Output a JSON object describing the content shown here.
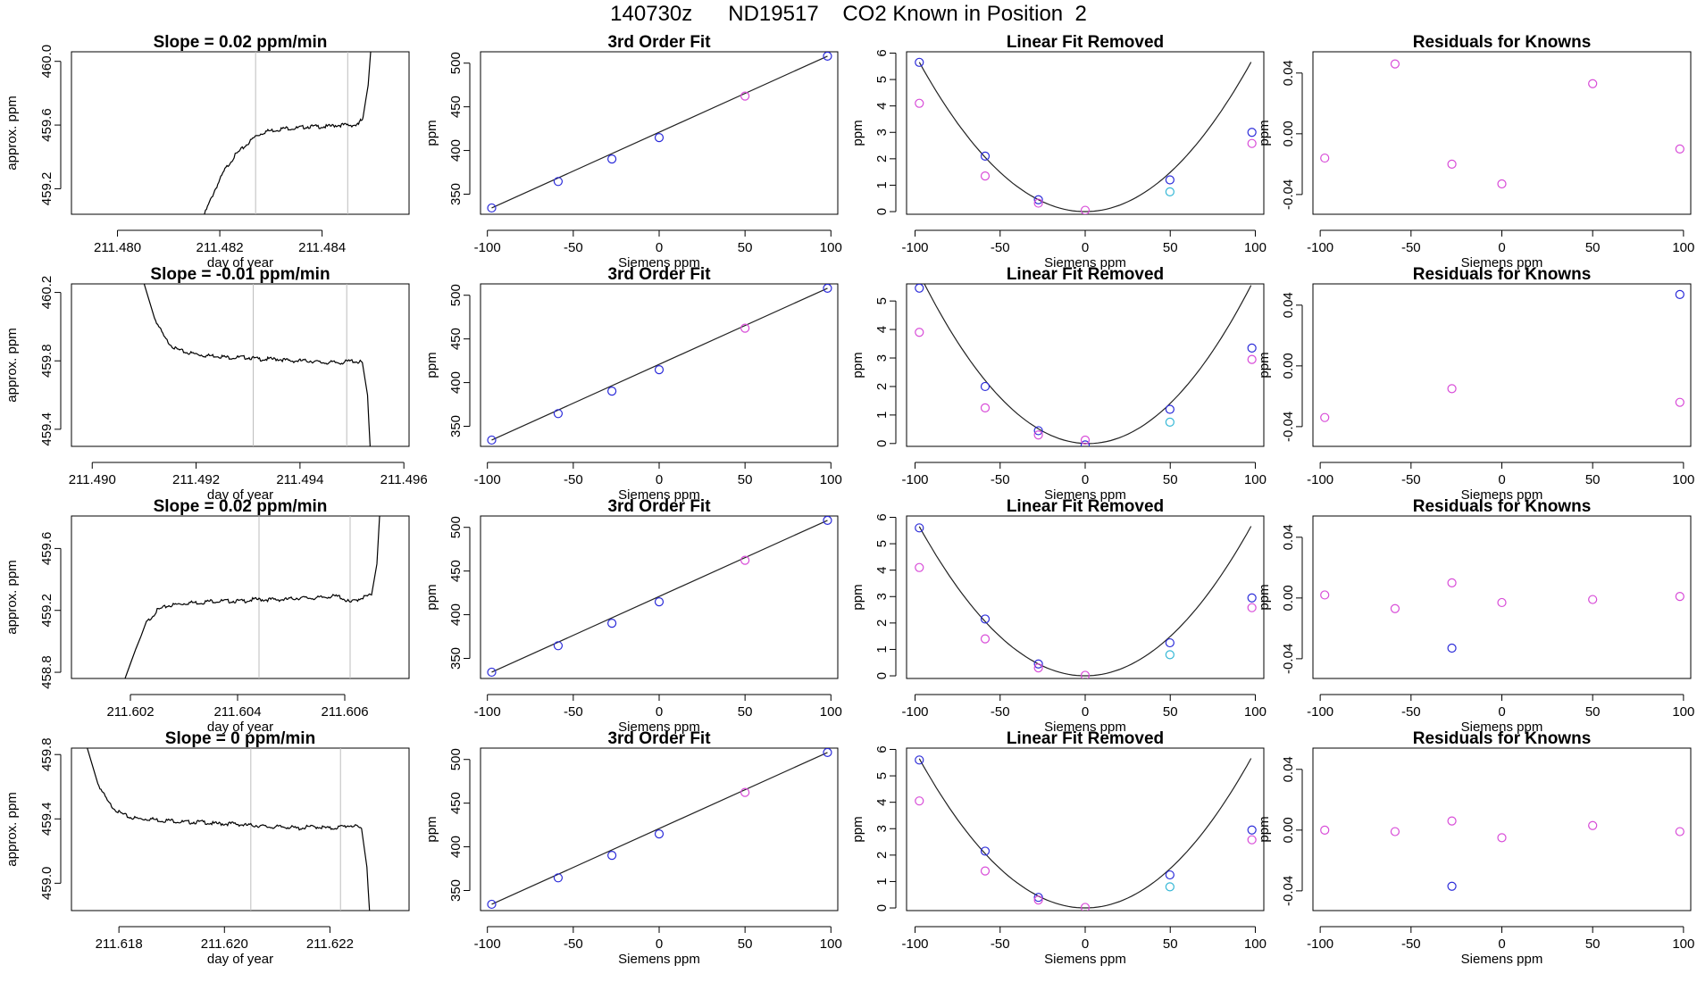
{
  "title": "140730z      ND19517    CO2 Known in Position  2",
  "colors": {
    "trace": "#000000",
    "window_lines": "#bdbdbd",
    "fit_line": "#222222",
    "blue_points": "#2b2bd9",
    "magenta_points": "#d84cd8",
    "cyan_points": "#36b8d6"
  },
  "chart_data": [
    {
      "type": "line",
      "panel": "trace-1",
      "title": "Slope =  0.02  ppm/min",
      "xlabel": "day of year",
      "ylabel": "approx. ppm",
      "xlim": [
        211.4791,
        211.4857
      ],
      "ylim": [
        459.04,
        460.06
      ],
      "xticks": [
        211.48,
        211.482,
        211.484
      ],
      "xtick_labels": [
        "211.480",
        "211.482",
        "211.484"
      ],
      "yticks": [
        459.2,
        459.6,
        460.0
      ],
      "ytick_labels": [
        "459.2",
        "459.6",
        "460.0"
      ],
      "window": [
        211.4827,
        211.4845
      ],
      "x": [
        211.4817,
        211.4819,
        211.4821,
        211.4823,
        211.4825,
        211.4827,
        211.4829,
        211.4831,
        211.4833,
        211.4835,
        211.4837,
        211.4839,
        211.4841,
        211.4843,
        211.4845,
        211.4847,
        211.4848,
        211.4849,
        211.48495
      ],
      "y": [
        459.04,
        459.19,
        459.32,
        459.41,
        459.47,
        459.53,
        459.56,
        459.57,
        459.58,
        459.58,
        459.59,
        459.59,
        459.59,
        459.6,
        459.6,
        459.6,
        459.65,
        459.85,
        460.06
      ]
    },
    {
      "type": "scatter",
      "panel": "fit-1",
      "title": "3rd Order Fit",
      "xlabel": "Siemens ppm",
      "ylabel": "ppm",
      "xlim": [
        -104,
        104
      ],
      "ylim": [
        327,
        513
      ],
      "xticks": [
        -100,
        -50,
        0,
        50,
        100
      ],
      "yticks": [
        350,
        400,
        450,
        500
      ],
      "series": [
        {
          "color": "blue",
          "x": [
            -97.5,
            -58.8,
            -27.5,
            0,
            98
          ],
          "y": [
            334.2,
            364.5,
            390.2,
            414.8,
            508
          ]
        },
        {
          "color": "magenta",
          "x": [
            50
          ],
          "y": [
            462.3
          ]
        }
      ],
      "fit_line": {
        "x": [
          -97.5,
          98
        ],
        "y": [
          334.2,
          508
        ]
      }
    },
    {
      "type": "scatter",
      "panel": "linear-removed-1",
      "title": "Linear Fit Removed",
      "xlabel": "Siemens ppm",
      "ylabel": "ppm",
      "xlim": [
        -105,
        105
      ],
      "ylim": [
        -0.1,
        6.05
      ],
      "xticks": [
        -100,
        -50,
        0,
        50,
        100
      ],
      "yticks": [
        0,
        1,
        2,
        3,
        4,
        5,
        6
      ],
      "series": [
        {
          "color": "blue",
          "x": [
            -97.5,
            -58.8,
            -27.5,
            49.8,
            98
          ],
          "y": [
            5.65,
            2.1,
            0.45,
            1.2,
            3.0
          ]
        },
        {
          "color": "magenta",
          "x": [
            -97.5,
            -58.8,
            -27.5,
            0,
            98
          ],
          "y": [
            4.1,
            1.35,
            0.32,
            0.05,
            2.58
          ]
        },
        {
          "color": "cyan",
          "x": [
            49.8
          ],
          "y": [
            0.75
          ]
        }
      ],
      "fit_curve": {
        "a": 0.000595,
        "b": 2.5e-05,
        "c": 0
      }
    },
    {
      "type": "scatter",
      "panel": "residuals-1",
      "title": "Residuals for Knowns",
      "xlabel": "Siemens ppm",
      "ylabel": "ppm",
      "xlim": [
        -104,
        104
      ],
      "ylim": [
        -0.053,
        0.054
      ],
      "xticks": [
        -100,
        -50,
        0,
        50,
        100
      ],
      "yticks": [
        -0.04,
        0.0,
        0.04
      ],
      "ytick_labels": [
        "-0.04",
        "0.00",
        "0.04"
      ],
      "series": [
        {
          "color": "magenta",
          "x": [
            -97.5,
            -58.8,
            -27.5,
            0,
            50,
            98
          ],
          "y": [
            -0.016,
            0.046,
            -0.02,
            -0.033,
            0.033,
            -0.01
          ]
        }
      ]
    },
    {
      "type": "line",
      "panel": "trace-2",
      "title": "Slope =  -0.01  ppm/min",
      "xlabel": "day of year",
      "ylabel": "approx. ppm",
      "xlim": [
        211.4896,
        211.4961
      ],
      "ylim": [
        459.3,
        460.25
      ],
      "xticks": [
        211.49,
        211.492,
        211.494,
        211.496
      ],
      "xtick_labels": [
        "211.490",
        "211.492",
        "211.494",
        "211.496"
      ],
      "yticks": [
        459.4,
        459.8,
        460.2
      ],
      "ytick_labels": [
        "459.4",
        "459.8",
        "460.2"
      ],
      "window": [
        211.4931,
        211.4949
      ],
      "x": [
        211.491,
        211.4912,
        211.4914,
        211.4916,
        211.4918,
        211.492,
        211.4922,
        211.4924,
        211.4926,
        211.4928,
        211.493,
        211.4932,
        211.4934,
        211.4936,
        211.4938,
        211.494,
        211.4942,
        211.4944,
        211.4946,
        211.4948,
        211.495,
        211.4952,
        211.4953,
        211.49535
      ],
      "y": [
        460.25,
        460.05,
        459.93,
        459.87,
        459.85,
        459.84,
        459.83,
        459.83,
        459.82,
        459.82,
        459.82,
        459.81,
        459.81,
        459.81,
        459.8,
        459.8,
        459.8,
        459.79,
        459.79,
        459.79,
        459.8,
        459.79,
        459.6,
        459.3
      ]
    },
    {
      "type": "scatter",
      "panel": "fit-2",
      "title": "3rd Order Fit",
      "xlabel": "Siemens ppm",
      "ylabel": "ppm",
      "xlim": [
        -104,
        104
      ],
      "ylim": [
        327,
        513
      ],
      "xticks": [
        -100,
        -50,
        0,
        50,
        100
      ],
      "yticks": [
        350,
        400,
        450,
        500
      ],
      "series": [
        {
          "color": "blue",
          "x": [
            -97.5,
            -58.8,
            -27.5,
            0,
            98
          ],
          "y": [
            334.2,
            364.5,
            390.2,
            414.8,
            508
          ]
        },
        {
          "color": "magenta",
          "x": [
            50
          ],
          "y": [
            462.3
          ]
        }
      ],
      "fit_line": {
        "x": [
          -97.5,
          98
        ],
        "y": [
          334.2,
          508
        ]
      }
    },
    {
      "type": "scatter",
      "panel": "linear-removed-2",
      "title": "Linear Fit Removed",
      "xlabel": "Siemens ppm",
      "ylabel": "ppm",
      "xlim": [
        -105,
        105
      ],
      "ylim": [
        -0.1,
        5.6
      ],
      "xticks": [
        -100,
        -50,
        0,
        50,
        100
      ],
      "yticks": [
        0,
        1,
        2,
        3,
        4,
        5
      ],
      "series": [
        {
          "color": "blue",
          "x": [
            -97.5,
            -58.8,
            -27.5,
            0,
            49.8,
            98
          ],
          "y": [
            5.45,
            2.0,
            0.45,
            -0.05,
            1.2,
            3.35
          ]
        },
        {
          "color": "magenta",
          "x": [
            -97.5,
            -58.8,
            -27.5,
            0,
            98
          ],
          "y": [
            3.9,
            1.25,
            0.3,
            0.12,
            2.95
          ]
        },
        {
          "color": "cyan",
          "x": [
            49.8
          ],
          "y": [
            0.75
          ]
        }
      ],
      "fit_curve": {
        "a": 0.000605,
        "b": -0.00207,
        "c": 0
      }
    },
    {
      "type": "scatter",
      "panel": "residuals-2",
      "title": "Residuals for Knowns",
      "xlabel": "Siemens ppm",
      "ylabel": "ppm",
      "xlim": [
        -104,
        104
      ],
      "ylim": [
        -0.053,
        0.054
      ],
      "xticks": [
        -100,
        -50,
        0,
        50,
        100
      ],
      "yticks": [
        -0.04,
        0.0,
        0.04
      ],
      "ytick_labels": [
        "-0.04",
        "0.00",
        "0.04"
      ],
      "series": [
        {
          "color": "magenta",
          "x": [
            -97.5,
            -27.5,
            98
          ],
          "y": [
            -0.034,
            -0.015,
            -0.024
          ]
        },
        {
          "color": "blue",
          "x": [
            98
          ],
          "y": [
            0.047
          ]
        }
      ]
    },
    {
      "type": "line",
      "panel": "trace-3",
      "title": "Slope =  0.02  ppm/min",
      "xlabel": "day of year",
      "ylabel": "approx. ppm",
      "xlim": [
        211.6009,
        211.6072
      ],
      "ylim": [
        458.76,
        459.81
      ],
      "xticks": [
        211.602,
        211.604,
        211.606
      ],
      "xtick_labels": [
        "211.602",
        "211.604",
        "211.606"
      ],
      "yticks": [
        458.8,
        459.2,
        459.6
      ],
      "ytick_labels": [
        "458.8",
        "459.2",
        "459.6"
      ],
      "window": [
        211.6044,
        211.6061
      ],
      "x": [
        211.6019,
        211.6021,
        211.6023,
        211.6025,
        211.6027,
        211.6029,
        211.6031,
        211.6033,
        211.6035,
        211.6037,
        211.6039,
        211.6041,
        211.6043,
        211.6045,
        211.6047,
        211.6049,
        211.6051,
        211.6053,
        211.6055,
        211.6057,
        211.6059,
        211.6061,
        211.6063,
        211.6065,
        211.6066,
        211.60665
      ],
      "y": [
        458.76,
        458.95,
        459.12,
        459.2,
        459.23,
        459.24,
        459.25,
        459.25,
        459.26,
        459.26,
        459.26,
        459.26,
        459.27,
        459.27,
        459.27,
        459.27,
        459.28,
        459.28,
        459.28,
        459.29,
        459.29,
        459.25,
        459.28,
        459.3,
        459.5,
        459.81
      ]
    },
    {
      "type": "scatter",
      "panel": "fit-3",
      "title": "3rd Order Fit",
      "xlabel": "Siemens ppm",
      "ylabel": "ppm",
      "xlim": [
        -104,
        104
      ],
      "ylim": [
        327,
        513
      ],
      "xticks": [
        -100,
        -50,
        0,
        50,
        100
      ],
      "yticks": [
        350,
        400,
        450,
        500
      ],
      "series": [
        {
          "color": "blue",
          "x": [
            -97.5,
            -58.8,
            -27.5,
            0,
            98
          ],
          "y": [
            334.2,
            364.5,
            390.2,
            414.8,
            508
          ]
        },
        {
          "color": "magenta",
          "x": [
            50
          ],
          "y": [
            462.3
          ]
        }
      ],
      "fit_line": {
        "x": [
          -97.5,
          98
        ],
        "y": [
          334.2,
          508
        ]
      }
    },
    {
      "type": "scatter",
      "panel": "linear-removed-3",
      "title": "Linear Fit Removed",
      "xlabel": "Siemens ppm",
      "ylabel": "ppm",
      "xlim": [
        -105,
        105
      ],
      "ylim": [
        -0.1,
        6.05
      ],
      "xticks": [
        -100,
        -50,
        0,
        50,
        100
      ],
      "yticks": [
        0,
        1,
        2,
        3,
        4,
        5,
        6
      ],
      "series": [
        {
          "color": "blue",
          "x": [
            -97.5,
            -58.8,
            -27.5,
            49.8,
            98
          ],
          "y": [
            5.6,
            2.15,
            0.45,
            1.25,
            2.95
          ]
        },
        {
          "color": "magenta",
          "x": [
            -97.5,
            -58.8,
            -27.5,
            0,
            98
          ],
          "y": [
            4.1,
            1.4,
            0.3,
            0.02,
            2.58
          ]
        },
        {
          "color": "cyan",
          "x": [
            49.8
          ],
          "y": [
            0.8
          ]
        }
      ],
      "fit_curve": {
        "a": 0.000595,
        "b": 5e-05,
        "c": 0
      }
    },
    {
      "type": "scatter",
      "panel": "residuals-3",
      "title": "Residuals for Knowns",
      "xlabel": "Siemens ppm",
      "ylabel": "ppm",
      "xlim": [
        -104,
        104
      ],
      "ylim": [
        -0.053,
        0.054
      ],
      "xticks": [
        -100,
        -50,
        0,
        50,
        100
      ],
      "yticks": [
        -0.04,
        0.0,
        0.04
      ],
      "ytick_labels": [
        "-0.04",
        "0.00",
        "0.04"
      ],
      "series": [
        {
          "color": "magenta",
          "x": [
            -97.5,
            -58.8,
            -27.5,
            0,
            50,
            98
          ],
          "y": [
            0.002,
            -0.007,
            0.01,
            -0.003,
            -0.001,
            0.001
          ]
        },
        {
          "color": "blue",
          "x": [
            -27.5
          ],
          "y": [
            -0.033
          ]
        }
      ]
    },
    {
      "type": "line",
      "panel": "trace-4",
      "title": "Slope =  0  ppm/min",
      "xlabel": "day of year",
      "ylabel": "approx. ppm",
      "xlim": [
        211.6171,
        211.6235
      ],
      "ylim": [
        458.83,
        459.84
      ],
      "xticks": [
        211.618,
        211.62,
        211.622
      ],
      "xtick_labels": [
        "211.618",
        "211.620",
        "211.622"
      ],
      "yticks": [
        459.0,
        459.4,
        459.8
      ],
      "ytick_labels": [
        "459.0",
        "459.4",
        "459.8"
      ],
      "window": [
        211.6205,
        211.6222
      ],
      "x": [
        211.6174,
        211.6176,
        211.6178,
        211.618,
        211.6182,
        211.6184,
        211.6186,
        211.6188,
        211.619,
        211.6192,
        211.6194,
        211.6196,
        211.6198,
        211.62,
        211.6202,
        211.6204,
        211.6206,
        211.6208,
        211.621,
        211.6212,
        211.6214,
        211.6216,
        211.6218,
        211.622,
        211.6222,
        211.6224,
        211.6226,
        211.6227,
        211.62275
      ],
      "y": [
        459.84,
        459.62,
        459.5,
        459.44,
        459.41,
        459.4,
        459.4,
        459.39,
        459.39,
        459.38,
        459.38,
        459.38,
        459.37,
        459.37,
        459.37,
        459.36,
        459.36,
        459.35,
        459.35,
        459.35,
        459.34,
        459.35,
        459.35,
        459.34,
        459.35,
        459.36,
        459.34,
        459.1,
        458.83
      ]
    },
    {
      "type": "scatter",
      "panel": "fit-4",
      "title": "3rd Order Fit",
      "xlabel": "Siemens ppm",
      "ylabel": "ppm",
      "xlim": [
        -104,
        104
      ],
      "ylim": [
        327,
        513
      ],
      "xticks": [
        -100,
        -50,
        0,
        50,
        100
      ],
      "yticks": [
        350,
        400,
        450,
        500
      ],
      "series": [
        {
          "color": "blue",
          "x": [
            -97.5,
            -58.8,
            -27.5,
            0,
            98
          ],
          "y": [
            334.2,
            364.5,
            390.2,
            414.8,
            508
          ]
        },
        {
          "color": "magenta",
          "x": [
            50
          ],
          "y": [
            462.3
          ]
        }
      ],
      "fit_line": {
        "x": [
          -97.5,
          98
        ],
        "y": [
          334.2,
          508
        ]
      }
    },
    {
      "type": "scatter",
      "panel": "linear-removed-4",
      "title": "Linear Fit Removed",
      "xlabel": "Siemens ppm",
      "ylabel": "ppm",
      "xlim": [
        -105,
        105
      ],
      "ylim": [
        -0.1,
        6.05
      ],
      "xticks": [
        -100,
        -50,
        0,
        50,
        100
      ],
      "yticks": [
        0,
        1,
        2,
        3,
        4,
        5,
        6
      ],
      "series": [
        {
          "color": "blue",
          "x": [
            -97.5,
            -58.8,
            -27.5,
            49.8,
            98
          ],
          "y": [
            5.6,
            2.15,
            0.4,
            1.25,
            2.95
          ]
        },
        {
          "color": "magenta",
          "x": [
            -97.5,
            -58.8,
            -27.5,
            0,
            98
          ],
          "y": [
            4.05,
            1.4,
            0.3,
            0.02,
            2.58
          ]
        },
        {
          "color": "cyan",
          "x": [
            49.8
          ],
          "y": [
            0.8
          ]
        }
      ],
      "fit_curve": {
        "a": 0.000595,
        "b": 5e-05,
        "c": 0
      }
    },
    {
      "type": "scatter",
      "panel": "residuals-4",
      "title": "Residuals for Knowns",
      "xlabel": "Siemens ppm",
      "ylabel": "ppm",
      "xlim": [
        -104,
        104
      ],
      "ylim": [
        -0.053,
        0.054
      ],
      "xticks": [
        -100,
        -50,
        0,
        50,
        100
      ],
      "yticks": [
        -0.04,
        0.0,
        0.04
      ],
      "ytick_labels": [
        "-0.04",
        "0.00",
        "0.04"
      ],
      "series": [
        {
          "color": "magenta",
          "x": [
            -97.5,
            -58.8,
            -27.5,
            0,
            50,
            98
          ],
          "y": [
            0.0,
            -0.001,
            0.006,
            -0.005,
            0.003,
            -0.001
          ]
        },
        {
          "color": "blue",
          "x": [
            -27.5
          ],
          "y": [
            -0.037
          ]
        }
      ]
    }
  ]
}
